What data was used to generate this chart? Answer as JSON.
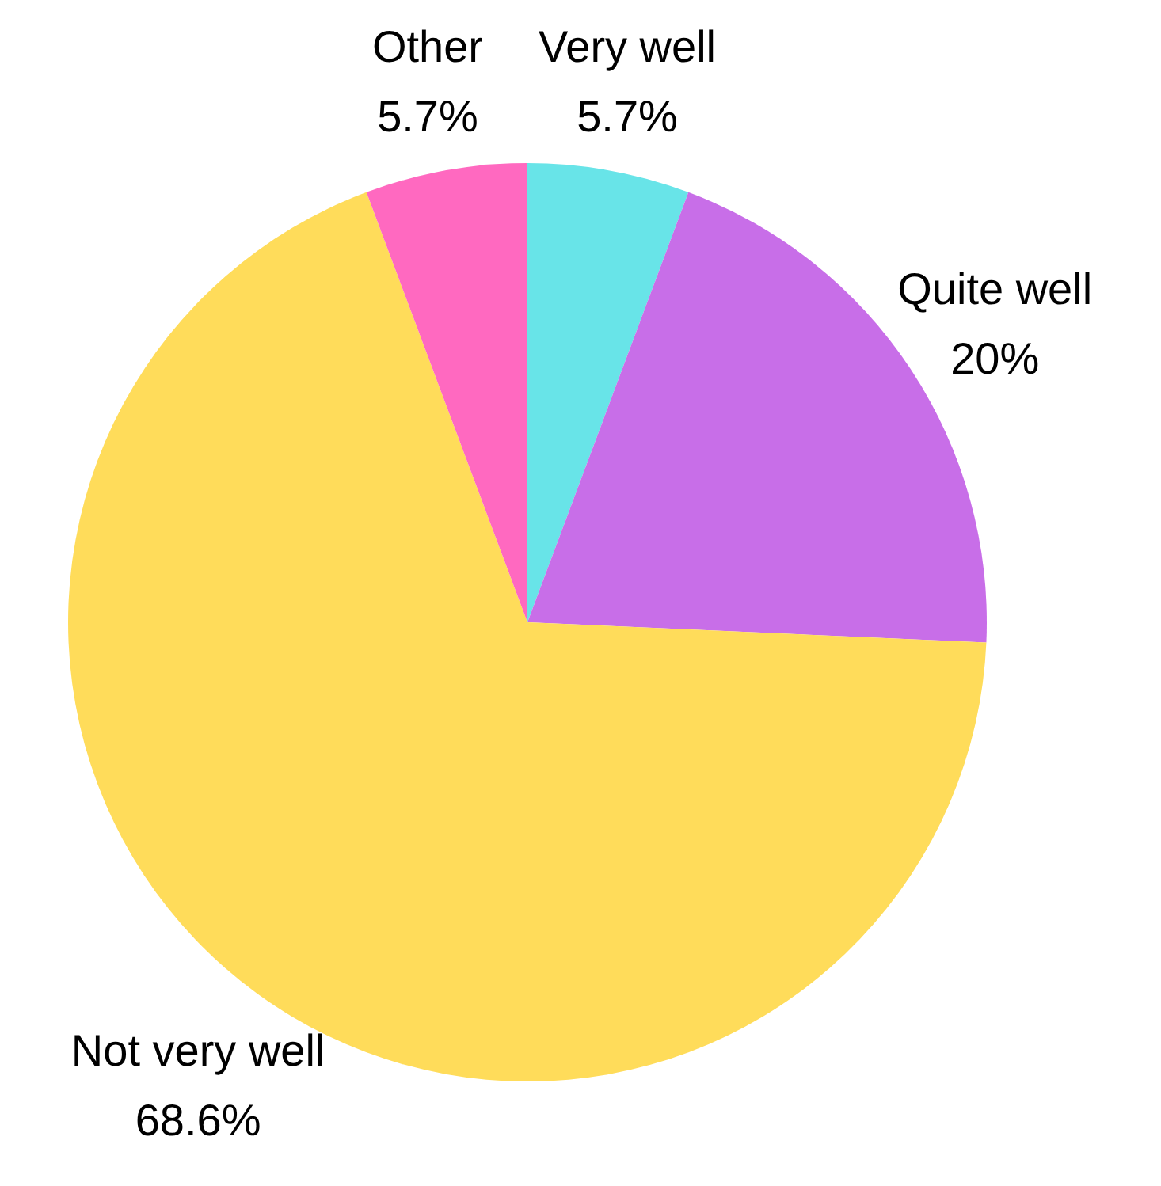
{
  "chart_data": {
    "type": "pie",
    "categories": [
      "Very well",
      "Quite well",
      "Not very well",
      "Other"
    ],
    "values": [
      5.7,
      20,
      68.6,
      5.7
    ],
    "value_labels": [
      "5.7%",
      "20%",
      "68.6%",
      "5.7%"
    ],
    "colors": [
      "#68e4e8",
      "#c86ee8",
      "#ffdc5a",
      "#ff69c0"
    ]
  }
}
